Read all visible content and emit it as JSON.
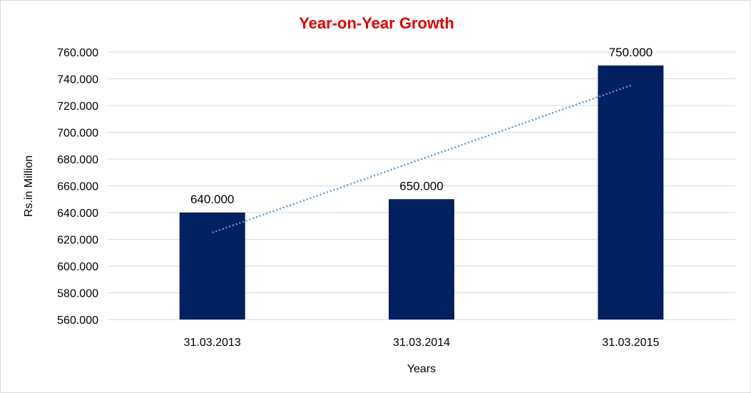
{
  "chart_data": {
    "type": "bar",
    "title": "Year-on-Year Growth",
    "xlabel": "Years",
    "ylabel": "Rs.in Million",
    "categories": [
      "31.03.2013",
      "31.03.2014",
      "31.03.2015"
    ],
    "values": [
      640,
      650,
      750
    ],
    "data_labels": [
      "640.000",
      "650.000",
      "750.000"
    ],
    "ylim": [
      560,
      760
    ],
    "y_ticks": [
      560,
      580,
      600,
      620,
      640,
      660,
      680,
      700,
      720,
      740,
      760
    ],
    "y_tick_labels": [
      "560.000",
      "580.000",
      "600.000",
      "620.000",
      "640.000",
      "660.000",
      "680.000",
      "700.000",
      "720.000",
      "740.000",
      "760.000"
    ],
    "grid": true,
    "legend": "none",
    "trendline": {
      "type": "linear",
      "style": "dotted"
    },
    "colors": {
      "bar": "#002060",
      "trendline": "#5b9bd5",
      "grid": "#d9d9d9",
      "title": "#e00000"
    }
  }
}
